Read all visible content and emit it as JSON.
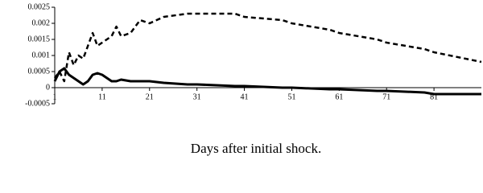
{
  "chart_data": {
    "type": "line",
    "x_label": "Days after initial shock.",
    "x": [
      1,
      2,
      3,
      4,
      5,
      6,
      7,
      8,
      9,
      10,
      11,
      12,
      13,
      14,
      15,
      17,
      19,
      21,
      24,
      29,
      31,
      39,
      41,
      49,
      51,
      59,
      61,
      69,
      71,
      79,
      81,
      91
    ],
    "series": [
      {
        "color": "#000000",
        "dash": true,
        "values": [
          0.0003,
          0.0005,
          0.0002,
          0.0011,
          0.0007,
          0.001,
          0.0009,
          0.0013,
          0.0017,
          0.0013,
          0.0014,
          0.0015,
          0.0016,
          0.0019,
          0.0016,
          0.0017,
          0.0021,
          0.002,
          0.0022,
          0.0023,
          0.0023,
          0.0023,
          0.0022,
          0.0021,
          0.002,
          0.0018,
          0.0017,
          0.0015,
          0.0014,
          0.0012,
          0.0011,
          0.0008
        ]
      },
      {
        "color": "#000000",
        "dash": false,
        "values": [
          0.0002,
          0.0005,
          0.0006,
          0.0004,
          0.0003,
          0.0002,
          0.0001,
          0.0002,
          0.0004,
          0.00045,
          0.0004,
          0.0003,
          0.0002,
          0.0002,
          0.00025,
          0.0002,
          0.0002,
          0.0002,
          0.00015,
          0.0001,
          0.0001,
          5e-05,
          5e-05,
          0,
          0,
          -5e-05,
          -5e-05,
          -0.0001,
          -0.0001,
          -0.00015,
          -0.0002,
          -0.0002
        ]
      }
    ],
    "xlim": [
      1,
      91
    ],
    "xticks": [
      1,
      11,
      21,
      31,
      41,
      51,
      61,
      71,
      81
    ],
    "ylim": [
      -0.0005,
      0.0025
    ],
    "yticks": [
      0.0025,
      0.002,
      0.0015,
      0.001,
      0.0005,
      0,
      -0.0005
    ]
  }
}
